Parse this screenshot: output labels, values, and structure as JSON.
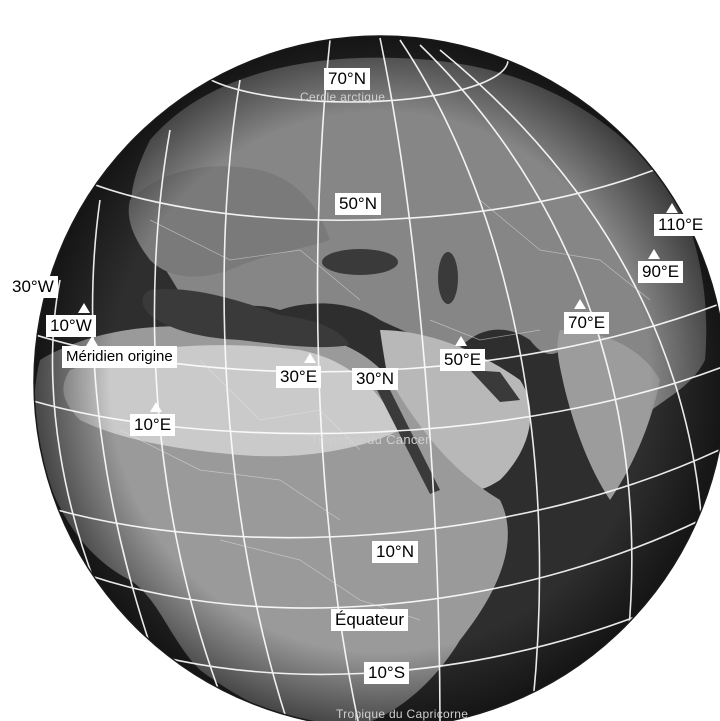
{
  "latitude_labels": {
    "lat70n": "70°N",
    "lat50n": "50°N",
    "lat30n": "30°N",
    "lat10n": "10°N",
    "equator": "Équateur",
    "lat10s": "10°S"
  },
  "longitude_labels": {
    "lon30w": "30°W",
    "lon10w": "10°W",
    "prime_meridian": "Méridien origine",
    "lon10e": "10°E",
    "lon30e": "30°E",
    "lon50e": "50°E",
    "lon70e": "70°E",
    "lon90e": "90°E",
    "lon110e": "110°E"
  },
  "map_text": {
    "arctic_circle": "Cercle arctique",
    "tropic_cancer": "Tropique du Cancer",
    "tropic_capricorn": "Tropique du Capricorne"
  },
  "colors": {
    "ocean": "#2e2e2e",
    "land": "#8a8a8a",
    "desert": "#cfcfcf",
    "grid": "#ffffff",
    "label_bg": "#ffffff"
  }
}
